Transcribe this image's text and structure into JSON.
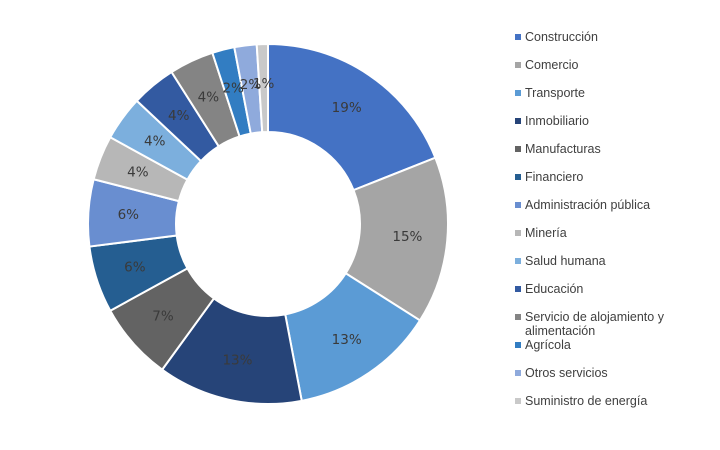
{
  "chart_data": {
    "type": "pie",
    "variant": "donut",
    "title": "",
    "categories": [
      "Construcción",
      "Comercio",
      "Transporte",
      "Inmobiliario",
      "Manufacturas",
      "Financiero",
      "Administración pública",
      "Minería",
      "Salud humana",
      "Educación",
      "Servicio de alojamiento y alimentación",
      "Agrícola",
      "Otros servicios",
      "Suministro de energía"
    ],
    "values": [
      19,
      15,
      13,
      13,
      7,
      6,
      6,
      4,
      4,
      4,
      4,
      2,
      2,
      1
    ],
    "data_labels": [
      "19%",
      "15%",
      "13%",
      "13%",
      "7%",
      "6%",
      "6%",
      "4%",
      "4%",
      "4%",
      "4%",
      "2%",
      "2%",
      "1%"
    ],
    "colors": [
      "#4472c4",
      "#a5a5a5",
      "#5b9bd5",
      "#264478",
      "#636363",
      "#255e91",
      "#698ed0",
      "#b7b7b7",
      "#7cafdd",
      "#335aa1",
      "#848484",
      "#327dc2",
      "#8faadc",
      "#c9c9c9"
    ],
    "legend_position": "right"
  }
}
